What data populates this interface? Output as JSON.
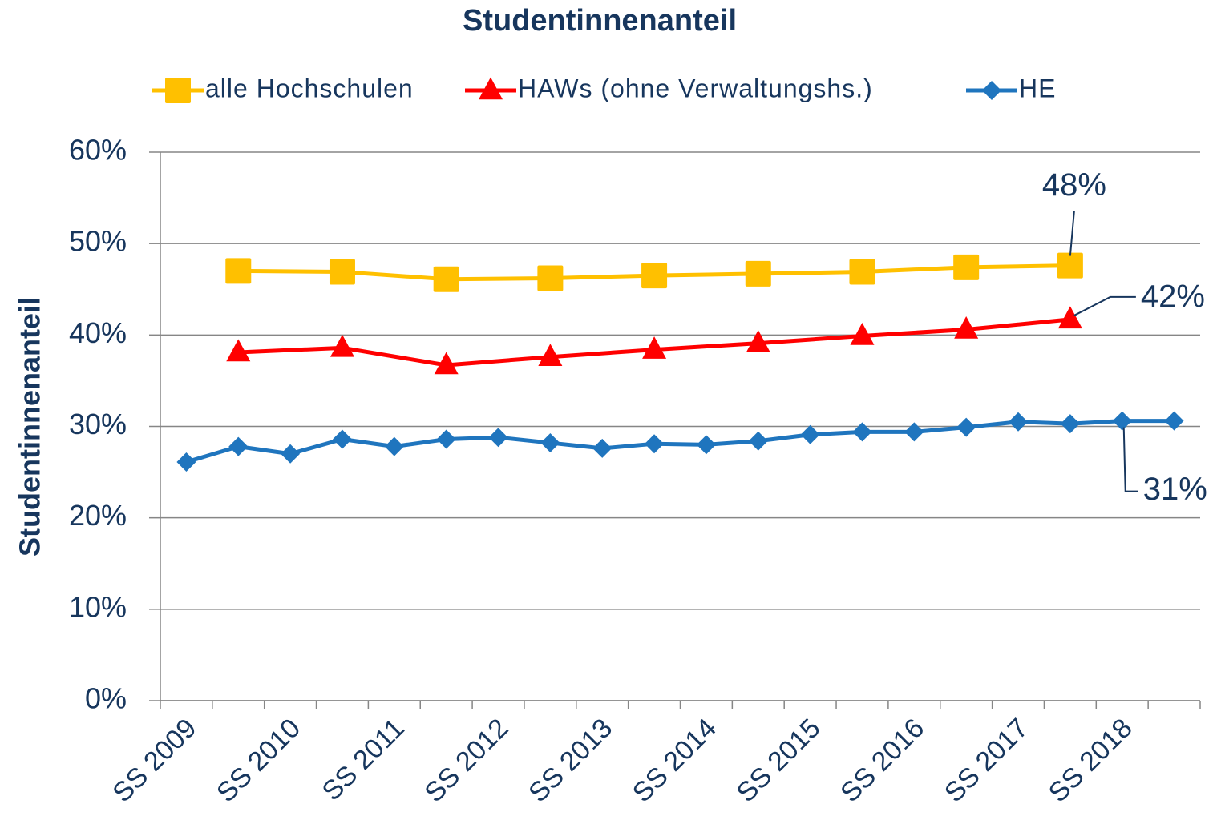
{
  "chart_data": {
    "type": "line",
    "title": "Studentinnenanteil",
    "y_label": "Studentinnenanteil",
    "categories": [
      "SS 2009",
      null,
      "SS 2010",
      null,
      "SS 2011",
      null,
      "SS 2012",
      null,
      "SS 2013",
      null,
      "SS 2014",
      null,
      "SS 2015",
      null,
      "SS 2016",
      null,
      "SS 2017",
      null,
      "SS 2018",
      null
    ],
    "series": [
      {
        "name": "alle Hochschulen",
        "color": "#FFC000",
        "marker": "square",
        "values": [
          null,
          47.0,
          null,
          46.9,
          null,
          46.1,
          null,
          46.2,
          null,
          46.5,
          null,
          46.7,
          null,
          46.9,
          null,
          47.4,
          null,
          47.6,
          null,
          null
        ],
        "value_labels": [
          null,
          null,
          null,
          null,
          null,
          null,
          null,
          null,
          null,
          null,
          null,
          null,
          null,
          null,
          null,
          null,
          null,
          "48%",
          null,
          null
        ]
      },
      {
        "name": "HAWs (ohne Verwaltungshs.)",
        "color": "#FF0000",
        "marker": "triangle",
        "values": [
          null,
          38.1,
          null,
          38.6,
          null,
          36.7,
          null,
          37.6,
          null,
          38.4,
          null,
          39.1,
          null,
          39.9,
          null,
          40.6,
          null,
          41.7,
          null,
          null
        ],
        "value_labels": [
          null,
          null,
          null,
          null,
          null,
          null,
          null,
          null,
          null,
          null,
          null,
          null,
          null,
          null,
          null,
          null,
          null,
          "42%",
          null,
          null
        ]
      },
      {
        "name": "HE",
        "color": "#1F75BE",
        "marker": "diamond",
        "values": [
          26.1,
          27.8,
          27.0,
          28.6,
          27.8,
          28.6,
          28.8,
          28.2,
          27.6,
          28.1,
          28.0,
          28.4,
          29.1,
          29.4,
          29.4,
          29.9,
          30.5,
          30.3,
          30.6,
          30.6
        ],
        "value_labels": [
          null,
          null,
          null,
          null,
          null,
          null,
          null,
          null,
          null,
          null,
          null,
          null,
          null,
          null,
          null,
          null,
          null,
          null,
          "31%",
          null
        ]
      }
    ],
    "connect_gaps": true,
    "ylim": [
      0,
      60
    ],
    "yticks": [
      {
        "value": 0,
        "label": "0%"
      },
      {
        "value": 10,
        "label": "10%"
      },
      {
        "value": 20,
        "label": "20%"
      },
      {
        "value": 30,
        "label": "30%"
      },
      {
        "value": 40,
        "label": "40%"
      },
      {
        "value": 50,
        "label": "50%"
      },
      {
        "value": 60,
        "label": "60%"
      }
    ],
    "grid": true,
    "legend": "top"
  }
}
